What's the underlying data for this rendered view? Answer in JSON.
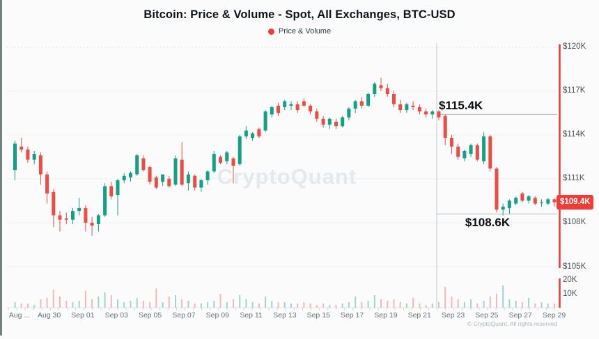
{
  "title": "Bitcoin: Price & Volume - Spot, All Exchanges, BTC-USD",
  "legend": {
    "label": "Price & Volume"
  },
  "watermark": "CryptoQuant",
  "footer": "© CryptoQuant. All rights reserved",
  "colors": {
    "up": "#13a185",
    "down": "#ee4b45",
    "accent_red": "#ee3d39",
    "volume_up": "rgba(19,161,133,0.40)",
    "volume_down": "rgba(238,75,69,0.38)",
    "grid": "#eef1f3",
    "grid_dotted": "#dfe3e6",
    "event_line": "#cfd4d8",
    "annotation_line": "#b4bbc1",
    "watermark_fill": "#e3e9ed"
  },
  "axes": {
    "price_labels": [
      {
        "v": 120,
        "label": "$120K"
      },
      {
        "v": 117,
        "label": "$117K"
      },
      {
        "v": 114,
        "label": "$114K"
      },
      {
        "v": 111,
        "label": "$111K"
      },
      {
        "v": 108,
        "label": "$108K"
      },
      {
        "v": 105,
        "label": "$105K"
      }
    ],
    "volume_labels": [
      {
        "v": 20,
        "label": "20K"
      },
      {
        "v": 10,
        "label": "10K"
      }
    ],
    "date_labels": [
      "Aug ...",
      "Aug 30",
      "Sep 01",
      "Sep 03",
      "Sep 05",
      "Sep 07",
      "Sep 09",
      "Sep 11",
      "Sep 13",
      "Sep 15",
      "Sep 17",
      "Sep 19",
      "Sep 21",
      "Sep 23",
      "Sep 25",
      "Sep 27",
      "Sep 29"
    ]
  },
  "annotations": {
    "resistance": {
      "label": "$115.4K",
      "price": 115.4
    },
    "support": {
      "label": "$108.6K",
      "price": 108.6
    },
    "last_price": {
      "label": "$109.4K",
      "price": 109.4
    },
    "event_line_date": "Sep 22"
  },
  "chart_data": {
    "type": "candlestick",
    "title": "Bitcoin: Price & Volume - Spot, All Exchanges, BTC-USD",
    "symbol": "BTC-USD",
    "price_unit": "USD thousands",
    "volume_unit": "thousand BTC",
    "date_range": [
      "Aug 28",
      "Sep 29"
    ],
    "price_axis_range_k": [
      105,
      120
    ],
    "volume_axis_range_k": [
      0,
      25
    ],
    "grid": "horizontal-light",
    "legend_position": "top-center",
    "candles_ohlc_k": [
      [
        111.6,
        113.6,
        110.9,
        113.4
      ],
      [
        113.2,
        113.8,
        112.8,
        113.0
      ],
      [
        113.0,
        113.2,
        112.1,
        112.3
      ],
      [
        112.3,
        112.9,
        112.0,
        112.7
      ],
      [
        112.6,
        112.8,
        110.6,
        111.3
      ],
      [
        111.3,
        111.5,
        109.3,
        110.0
      ],
      [
        110.1,
        110.3,
        107.7,
        108.5
      ],
      [
        108.5,
        108.8,
        107.4,
        108.2
      ],
      [
        108.3,
        108.7,
        107.9,
        108.2
      ],
      [
        108.2,
        109.0,
        107.9,
        108.8
      ],
      [
        108.8,
        109.7,
        108.5,
        109.0
      ],
      [
        109.0,
        109.2,
        107.4,
        108.0
      ],
      [
        108.0,
        108.4,
        107.1,
        107.8
      ],
      [
        107.9,
        108.6,
        107.4,
        108.5
      ],
      [
        108.5,
        110.7,
        108.4,
        110.5
      ],
      [
        110.5,
        110.8,
        109.6,
        109.8
      ],
      [
        109.9,
        111.0,
        108.5,
        110.9
      ],
      [
        110.9,
        111.4,
        110.7,
        111.2
      ],
      [
        111.1,
        111.5,
        110.8,
        111.4
      ],
      [
        111.3,
        112.7,
        111.2,
        112.6
      ],
      [
        112.4,
        112.6,
        111.5,
        111.6
      ],
      [
        111.8,
        111.9,
        110.6,
        110.8
      ],
      [
        111.1,
        111.2,
        110.3,
        110.4
      ],
      [
        110.8,
        111.3,
        110.5,
        111.3
      ],
      [
        111.0,
        111.2,
        110.4,
        110.5
      ],
      [
        110.6,
        112.6,
        110.5,
        112.4
      ],
      [
        112.3,
        113.5,
        110.5,
        110.6
      ],
      [
        110.7,
        111.5,
        110.2,
        111.3
      ],
      [
        111.2,
        111.3,
        110.2,
        110.4
      ],
      [
        110.4,
        111.0,
        110.1,
        110.9
      ],
      [
        110.9,
        111.6,
        110.6,
        111.5
      ],
      [
        111.5,
        112.9,
        111.4,
        112.7
      ],
      [
        112.5,
        112.6,
        112.0,
        112.1
      ],
      [
        112.2,
        112.9,
        112.0,
        112.8
      ],
      [
        112.4,
        112.5,
        110.7,
        111.9
      ],
      [
        112.0,
        114.0,
        111.9,
        113.9
      ],
      [
        113.9,
        114.6,
        113.7,
        114.3
      ],
      [
        113.8,
        114.2,
        113.6,
        114.1
      ],
      [
        114.4,
        114.5,
        113.8,
        113.9
      ],
      [
        114.3,
        115.7,
        114.2,
        115.6
      ],
      [
        115.4,
        116.0,
        115.2,
        115.9
      ],
      [
        116.0,
        116.2,
        115.3,
        115.5
      ],
      [
        115.9,
        116.4,
        115.7,
        116.3
      ],
      [
        116.0,
        116.3,
        115.7,
        116.1
      ],
      [
        116.1,
        116.3,
        115.5,
        115.7
      ],
      [
        116.3,
        116.5,
        115.9,
        116.0
      ],
      [
        116.0,
        116.1,
        115.4,
        115.6
      ],
      [
        115.6,
        115.8,
        114.9,
        115.1
      ],
      [
        115.1,
        115.3,
        114.5,
        114.7
      ],
      [
        114.7,
        115.2,
        114.4,
        115.1
      ],
      [
        114.9,
        115.1,
        114.4,
        114.6
      ],
      [
        114.6,
        115.3,
        114.5,
        115.2
      ],
      [
        115.2,
        115.9,
        115.0,
        115.8
      ],
      [
        115.8,
        116.4,
        115.5,
        116.3
      ],
      [
        116.3,
        116.6,
        115.8,
        116.0
      ],
      [
        116.0,
        116.9,
        115.9,
        116.8
      ],
      [
        116.8,
        117.6,
        116.6,
        117.5
      ],
      [
        117.4,
        117.9,
        117.0,
        117.2
      ],
      [
        117.2,
        117.5,
        116.6,
        116.8
      ],
      [
        116.8,
        117.0,
        115.9,
        116.1
      ],
      [
        116.1,
        116.4,
        115.5,
        115.7
      ],
      [
        115.7,
        116.2,
        115.5,
        116.1
      ],
      [
        116.0,
        116.3,
        115.7,
        115.9
      ],
      [
        115.9,
        116.1,
        115.4,
        115.6
      ],
      [
        115.6,
        115.8,
        115.2,
        115.4
      ],
      [
        115.4,
        115.7,
        115.1,
        115.6
      ],
      [
        115.6,
        115.7,
        115.0,
        115.2
      ],
      [
        115.3,
        115.4,
        113.3,
        113.8
      ],
      [
        113.8,
        114.0,
        112.7,
        113.2
      ],
      [
        113.2,
        113.4,
        112.3,
        112.5
      ],
      [
        112.4,
        113.0,
        112.2,
        112.9
      ],
      [
        112.7,
        113.4,
        112.5,
        113.3
      ],
      [
        113.3,
        113.4,
        112.2,
        112.3
      ],
      [
        112.2,
        114.2,
        112.0,
        113.9
      ],
      [
        113.9,
        114.0,
        111.5,
        111.7
      ],
      [
        111.7,
        111.8,
        108.7,
        108.9
      ],
      [
        108.9,
        109.3,
        108.5,
        109.1
      ],
      [
        109.0,
        109.6,
        108.6,
        109.5
      ],
      [
        109.3,
        109.8,
        109.2,
        109.7
      ],
      [
        110.0,
        110.1,
        109.4,
        109.5
      ],
      [
        109.5,
        109.9,
        109.3,
        109.8
      ],
      [
        109.7,
        109.8,
        109.2,
        109.3
      ],
      [
        109.4,
        109.6,
        109.1,
        109.4
      ],
      [
        109.3,
        109.7,
        109.2,
        109.6
      ],
      [
        109.6,
        109.7,
        109.1,
        109.4
      ]
    ],
    "volumes_k": [
      4,
      3,
      3,
      2,
      6,
      7,
      13,
      8,
      5,
      4,
      5,
      12,
      6,
      8,
      11,
      9,
      6,
      4,
      5,
      7,
      5,
      4,
      14,
      4,
      8,
      9,
      6,
      5,
      3,
      3,
      4,
      5,
      10,
      4,
      6,
      9,
      6,
      4,
      3,
      8,
      5,
      4,
      4,
      3,
      3,
      4,
      3,
      2,
      3,
      2,
      2,
      3,
      4,
      8,
      4,
      5,
      9,
      6,
      5,
      6,
      4,
      3,
      7,
      3,
      2,
      3,
      4,
      15,
      8,
      6,
      4,
      6,
      3,
      5,
      8,
      10,
      16,
      6,
      5,
      4,
      7,
      3,
      4,
      3,
      3
    ],
    "live_bar": {
      "high": 120.2,
      "low": 104.9,
      "close": 109.4,
      "volume_k": 21
    }
  }
}
